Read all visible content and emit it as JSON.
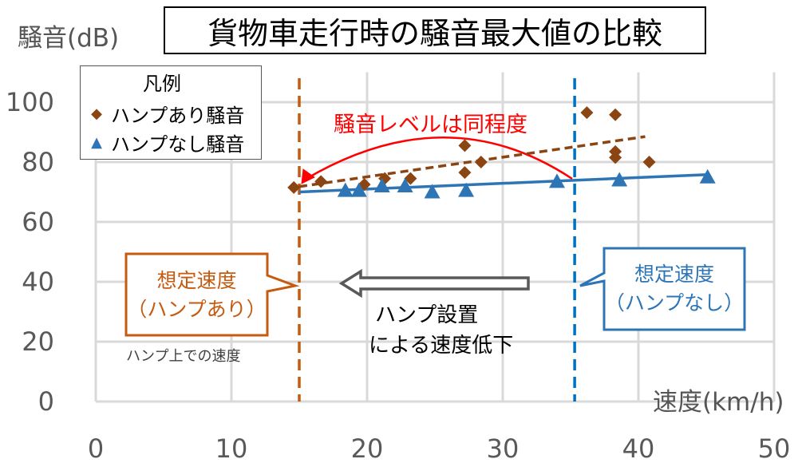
{
  "chart_data": {
    "type": "scatter",
    "title": "貨物車走行時の騒音最大値の比較",
    "xlabel": "速度(km/h)",
    "ylabel": "騒音(dB)",
    "xlim": [
      0,
      50
    ],
    "ylim": [
      0,
      110
    ],
    "x_ticks": [
      "0",
      "10",
      "20",
      "30",
      "40",
      "50"
    ],
    "y_ticks": [
      "0",
      "20",
      "40",
      "60",
      "80",
      "100"
    ],
    "grid": true,
    "legend_title": "凡例",
    "legend_position": "top-left",
    "series": [
      {
        "name": "ハンプあり騒音",
        "marker": "diamond",
        "color": "#8B4513",
        "points": [
          [
            14.6,
            71.5
          ],
          [
            16.6,
            73.5
          ],
          [
            19.8,
            72.5
          ],
          [
            21.3,
            74.5
          ],
          [
            23.2,
            74.5
          ],
          [
            27.2,
            85.5
          ],
          [
            27.2,
            76.5
          ],
          [
            28.4,
            80.0
          ],
          [
            36.2,
            96.5
          ],
          [
            38.3,
            95.8
          ],
          [
            38.3,
            83.5
          ],
          [
            38.3,
            81.5
          ],
          [
            40.8,
            80.0
          ]
        ],
        "trendline": {
          "x": [
            15,
            40.5
          ],
          "y": [
            71.8,
            88.5
          ],
          "style": "dashed"
        }
      },
      {
        "name": "ハンプなし騒音",
        "marker": "triangle",
        "color": "#2E75B6",
        "points": [
          [
            18.4,
            70.5
          ],
          [
            19.4,
            70.5
          ],
          [
            21.1,
            72.0
          ],
          [
            22.8,
            72.0
          ],
          [
            24.8,
            70.0
          ],
          [
            27.3,
            70.5
          ],
          [
            34.0,
            73.5
          ],
          [
            38.6,
            74.0
          ],
          [
            45.1,
            75.0
          ]
        ],
        "trendline": {
          "x": [
            15,
            45.1
          ],
          "y": [
            70.0,
            75.8
          ],
          "style": "solid"
        }
      }
    ],
    "vertical_lines": [
      {
        "x": 15.0,
        "color": "#C55A11",
        "style": "dashed"
      },
      {
        "x": 35.3,
        "color": "#0070C0",
        "style": "dashed"
      }
    ],
    "annotations": {
      "noise_level": "騒音レベルは同程度",
      "speed_with_hump_line1": "想定速度",
      "speed_with_hump_line2": "（ハンプあり）",
      "speed_without_hump_line1": "想定速度",
      "speed_without_hump_line2": "（ハンプなし）",
      "speed_on_hump": "ハンプ上での速度",
      "hump_effect_line1": "ハンプ設置",
      "hump_effect_line2": "による速度低下"
    }
  },
  "colors": {
    "grid": "#D9D9D9",
    "axis_text": "#595959",
    "red_arrow": "#FF0000",
    "gray_arrow": "#595959",
    "orange_callout": "#C55A11",
    "blue_callout": "#2E75B6"
  }
}
